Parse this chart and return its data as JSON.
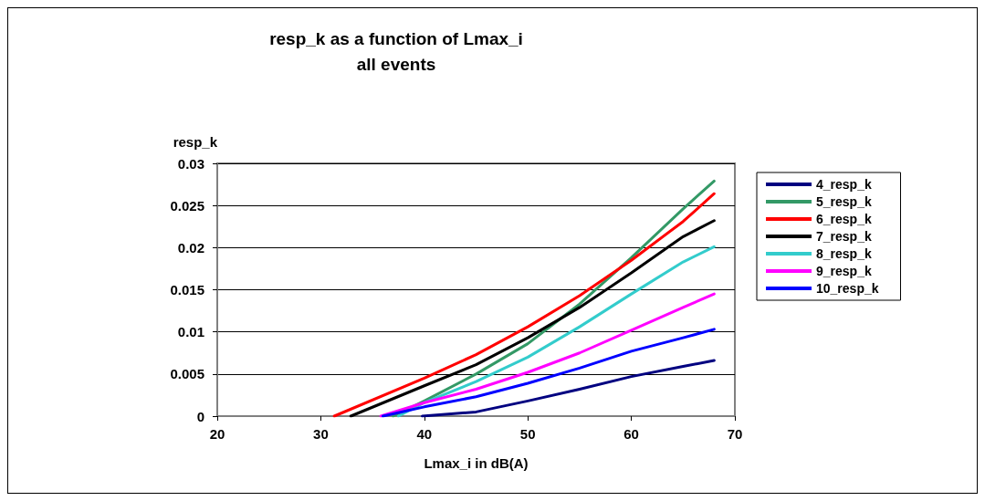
{
  "chart_data": {
    "type": "line",
    "title": "resp_k as a function of Lmax_i\nall events",
    "xlabel": "Lmax_i in dB(A)",
    "ylabel": "resp_k",
    "xlim": [
      20,
      70
    ],
    "xticks": [
      20,
      30,
      40,
      50,
      60,
      70
    ],
    "ylim": [
      0,
      0.03
    ],
    "yticks": [
      0,
      0.005,
      0.01,
      0.015,
      0.02,
      0.025,
      0.03
    ],
    "grid": "y",
    "legend": "right",
    "marker": "none",
    "line_style": "solid",
    "series": [
      {
        "name": "4_resp_k",
        "color": "#000080",
        "x": [
          39.8,
          45,
          50,
          55,
          60,
          65,
          68
        ],
        "values": [
          0,
          0.0005,
          0.0018,
          0.0032,
          0.0047,
          0.0059,
          0.0066
        ]
      },
      {
        "name": "5_resp_k",
        "color": "#339966",
        "x": [
          37,
          40,
          45,
          50,
          55,
          60,
          65,
          68
        ],
        "values": [
          0,
          0.0018,
          0.005,
          0.0086,
          0.0133,
          0.0188,
          0.0246,
          0.0279
        ]
      },
      {
        "name": "6_resp_k",
        "color": "#ff0000",
        "x": [
          31.3,
          40,
          45,
          50,
          55,
          60,
          65,
          68
        ],
        "values": [
          0,
          0.0045,
          0.0073,
          0.0106,
          0.0143,
          0.0185,
          0.0231,
          0.0264
        ]
      },
      {
        "name": "7_resp_k",
        "color": "#000000",
        "x": [
          32.9,
          40,
          45,
          50,
          55,
          60,
          65,
          68
        ],
        "values": [
          0,
          0.0036,
          0.0061,
          0.0093,
          0.0129,
          0.017,
          0.0213,
          0.0232
        ]
      },
      {
        "name": "8_resp_k",
        "color": "#33cccc",
        "x": [
          37.5,
          40,
          45,
          50,
          55,
          60,
          65,
          68
        ],
        "values": [
          0,
          0.0016,
          0.0041,
          0.007,
          0.0106,
          0.0145,
          0.0183,
          0.0201
        ]
      },
      {
        "name": "9_resp_k",
        "color": "#ff00ff",
        "x": [
          35.8,
          40,
          45,
          50,
          55,
          60,
          65,
          68
        ],
        "values": [
          0,
          0.0016,
          0.0032,
          0.0052,
          0.0075,
          0.0102,
          0.0129,
          0.0145
        ]
      },
      {
        "name": "10_resp_k",
        "color": "#0000ff",
        "x": [
          36,
          40,
          45,
          50,
          55,
          60,
          65,
          68
        ],
        "values": [
          0,
          0.0011,
          0.0023,
          0.0039,
          0.0057,
          0.0077,
          0.0093,
          0.0103
        ]
      }
    ]
  }
}
